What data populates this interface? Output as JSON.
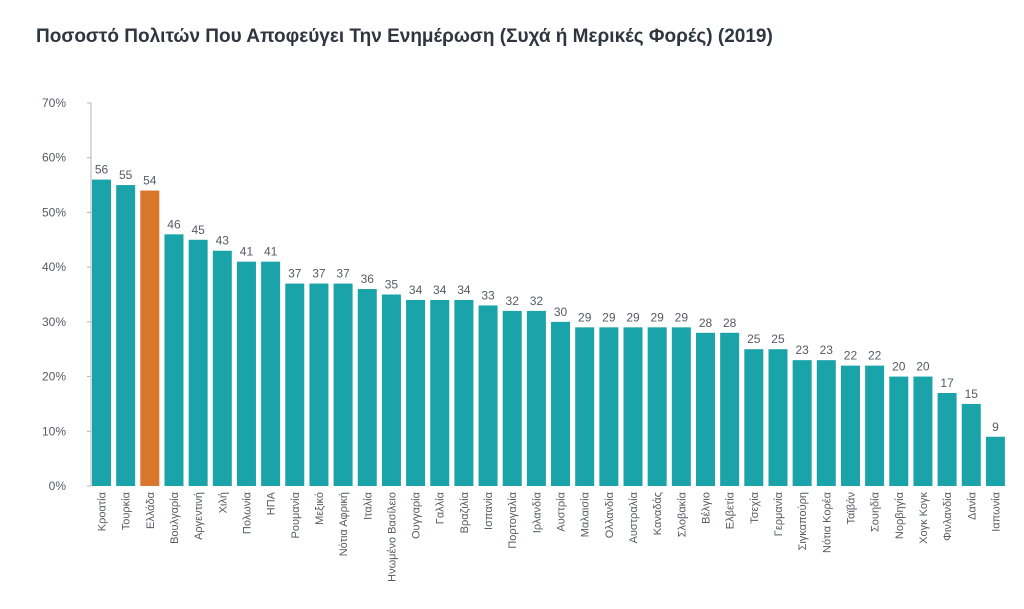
{
  "chart_data": {
    "type": "bar",
    "title": "Ποσοστό Πολιτών Που Αποφεύγει Την Ενημέρωση (Συχά ή Μερικές Φορές) (2019)",
    "xlabel": "",
    "ylabel": "",
    "ylim": [
      0,
      70
    ],
    "yticks": [
      "0%",
      "10%",
      "20%",
      "30%",
      "40%",
      "50%",
      "60%",
      "70%"
    ],
    "grid": false,
    "colors": {
      "default": "#1aa3a8",
      "highlight": "#d9782d",
      "axis": "#b0b5bb",
      "text": "#555b63",
      "title": "#2f3640"
    },
    "highlight_index": 2,
    "categories": [
      "Κροατία",
      "Τουρκία",
      "Ελλάδα",
      "Βουλγαρία",
      "Αργεντινή",
      "Χιλή",
      "Πολωνία",
      "ΗΠΑ",
      "Ρουμανία",
      "Μεξικό",
      "Νότια Αφρική",
      "Ιταλία",
      "Ηνωμένο Βασίλειο",
      "Ουγγαρία",
      "Γαλλία",
      "Βραζιλία",
      "Ισπανία",
      "Πορτογαλία",
      "Ιρλανδία",
      "Αυστρία",
      "Μαλαισία",
      "Ολλανδία",
      "Αυστραλία",
      "Καναδάς",
      "Σλοβακία",
      "Βέλγιο",
      "Ελβετία",
      "Τσεχία",
      "Γερμανία",
      "Σιγκαπούρη",
      "Νότια Κορέα",
      "Ταϊβάν",
      "Σουηδία",
      "Νορβηγία",
      "Χογκ Κογκ",
      "Φινλανδία",
      "Δανία",
      "Ιαπωνία"
    ],
    "values": [
      56,
      55,
      54,
      46,
      45,
      43,
      41,
      41,
      37,
      37,
      37,
      36,
      35,
      34,
      34,
      34,
      33,
      32,
      32,
      30,
      29,
      29,
      29,
      29,
      29,
      28,
      28,
      25,
      25,
      23,
      23,
      22,
      22,
      20,
      20,
      17,
      15,
      9
    ]
  }
}
